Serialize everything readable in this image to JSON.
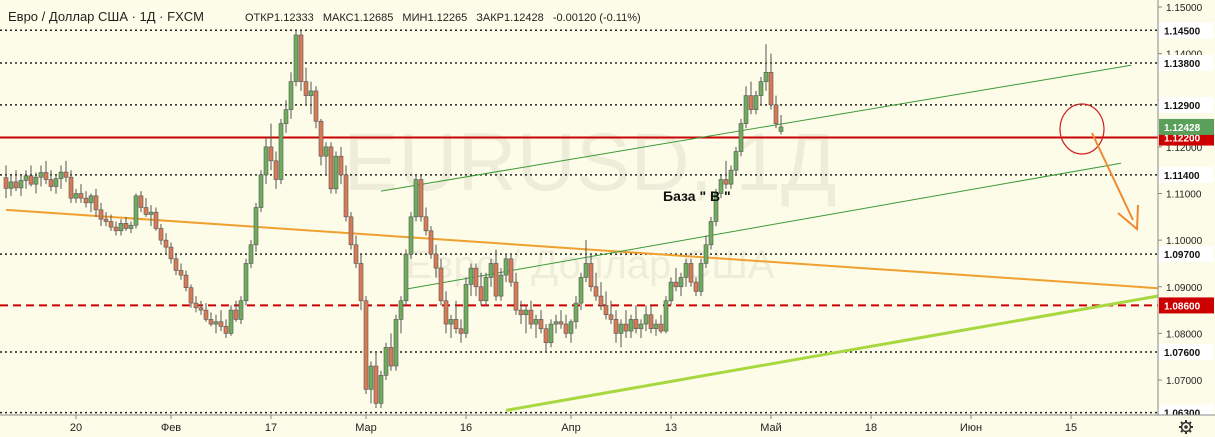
{
  "header": {
    "symbol": "Евро / Доллар США · 1Д · FXCM",
    "open_label": "ОТКР",
    "open": "1.12333",
    "high_label": "МАКС",
    "high": "1.12685",
    "low_label": "МИН",
    "low": "1.12265",
    "close_label": "ЗАКР",
    "close": "1.12428",
    "change": "-0.00120 (-0.11%)"
  },
  "watermark": {
    "ticker": "EURUSD, 1Д",
    "name": "Евро / Доллар США"
  },
  "annotation": {
    "text": "База \" В \""
  },
  "colors": {
    "background": "#fdfce8",
    "bull": "#6fad5e",
    "bear": "#d97a56",
    "red_level": "#cc0000",
    "orange_line": "#f0a030",
    "lime_line": "#a8d840",
    "channel": "#3a9a3a",
    "price_badge": "#5aa05a"
  },
  "chart_data": {
    "type": "candlestick",
    "title": "Евро / Доллар США · 1Д · FXCM",
    "ylim": [
      1.0625,
      1.1515
    ],
    "y_ticks": [
      1.15,
      1.14,
      1.13,
      1.12,
      1.11,
      1.1,
      1.09,
      1.08,
      1.07
    ],
    "y_tick_labels": [
      "1.15000",
      "1.14000",
      "1.13000",
      "1.12000",
      "1.11000",
      "1.10000",
      "1.09000",
      "1.08000",
      "1.07000"
    ],
    "x_tick_labels": [
      "20",
      "Фев",
      "17",
      "Мар",
      "16",
      "Апр",
      "13",
      "Май",
      "18",
      "Июн",
      "15"
    ],
    "x_tick_index": [
      14,
      33,
      53,
      72,
      92,
      113,
      133,
      153,
      173,
      193,
      213
    ],
    "levels": [
      {
        "value": 1.145,
        "label": "1.14500",
        "style": "dotted"
      },
      {
        "value": 1.138,
        "label": "1.13800",
        "style": "dotted"
      },
      {
        "value": 1.129,
        "label": "1.12900",
        "style": "dotted"
      },
      {
        "value": 1.122,
        "label": "1.12200",
        "style": "solid-red"
      },
      {
        "value": 1.114,
        "label": "1.11400",
        "style": "dotted"
      },
      {
        "value": 1.097,
        "label": "1.09700",
        "style": "dotted"
      },
      {
        "value": 1.086,
        "label": "1.08600",
        "style": "dashed-red"
      },
      {
        "value": 1.076,
        "label": "1.07600",
        "style": "dotted"
      },
      {
        "value": 1.063,
        "label": "1.06300",
        "style": "dotted"
      }
    ],
    "last_price": {
      "value": 1.12428,
      "label": "1.12428"
    },
    "trendlines": [
      {
        "name": "orange",
        "from": [
          0,
          1.1065
        ],
        "to": [
          233,
          1.0895
        ]
      },
      {
        "name": "lime",
        "from": [
          100,
          1.0635
        ],
        "to": [
          233,
          1.0885
        ]
      },
      {
        "name": "channel-upper",
        "from": [
          75,
          1.1105
        ],
        "to": [
          225,
          1.1375
        ]
      },
      {
        "name": "channel-lower",
        "from": [
          80,
          1.0895
        ],
        "to": [
          223,
          1.1165
        ]
      }
    ],
    "candles": [
      [
        1.1134,
        1.116,
        1.109,
        1.1111
      ],
      [
        1.1111,
        1.114,
        1.1095,
        1.1125
      ],
      [
        1.1125,
        1.115,
        1.1105,
        1.1112
      ],
      [
        1.1112,
        1.114,
        1.1095,
        1.1128
      ],
      [
        1.1128,
        1.115,
        1.111,
        1.1138
      ],
      [
        1.1138,
        1.116,
        1.1115,
        1.112
      ],
      [
        1.112,
        1.1145,
        1.11,
        1.1135
      ],
      [
        1.1135,
        1.116,
        1.1115,
        1.1145
      ],
      [
        1.1145,
        1.117,
        1.112,
        1.113
      ],
      [
        1.113,
        1.115,
        1.1105,
        1.1115
      ],
      [
        1.1115,
        1.114,
        1.11,
        1.1132
      ],
      [
        1.1132,
        1.116,
        1.111,
        1.1146
      ],
      [
        1.1146,
        1.117,
        1.1125,
        1.1135
      ],
      [
        1.1135,
        1.115,
        1.108,
        1.109
      ],
      [
        1.109,
        1.111,
        1.108,
        1.11
      ],
      [
        1.11,
        1.112,
        1.108,
        1.109
      ],
      [
        1.109,
        1.1105,
        1.107,
        1.108
      ],
      [
        1.108,
        1.11,
        1.106,
        1.1095
      ],
      [
        1.1095,
        1.111,
        1.105,
        1.1065
      ],
      [
        1.1065,
        1.108,
        1.103,
        1.1045
      ],
      [
        1.1045,
        1.106,
        1.103,
        1.104
      ],
      [
        1.104,
        1.1055,
        1.102,
        1.1028
      ],
      [
        1.1028,
        1.104,
        1.101,
        1.102
      ],
      [
        1.102,
        1.1045,
        1.101,
        1.1036
      ],
      [
        1.1036,
        1.105,
        1.102,
        1.1025
      ],
      [
        1.1025,
        1.104,
        1.1015,
        1.1032
      ],
      [
        1.1032,
        1.11,
        1.1025,
        1.1095
      ],
      [
        1.1095,
        1.1105,
        1.106,
        1.107
      ],
      [
        1.107,
        1.109,
        1.105,
        1.1055
      ],
      [
        1.1055,
        1.1075,
        1.103,
        1.106
      ],
      [
        1.106,
        1.107,
        1.102,
        1.1025
      ],
      [
        1.1025,
        1.1035,
        1.099,
        1.1
      ],
      [
        1.1,
        1.1015,
        1.097,
        1.0985
      ],
      [
        1.0985,
        1.0995,
        1.095,
        1.096
      ],
      [
        1.096,
        1.097,
        1.0925,
        1.0935
      ],
      [
        1.0935,
        1.095,
        1.0915,
        1.0925
      ],
      [
        1.0925,
        1.0935,
        1.089,
        1.0898
      ],
      [
        1.0898,
        1.0905,
        1.0855,
        1.0865
      ],
      [
        1.0865,
        1.088,
        1.0845,
        1.0855
      ],
      [
        1.0855,
        1.087,
        1.084,
        1.085
      ],
      [
        1.085,
        1.0865,
        1.0825,
        1.083
      ],
      [
        1.083,
        1.0845,
        1.0815,
        1.082
      ],
      [
        1.082,
        1.084,
        1.08,
        1.0825
      ],
      [
        1.0825,
        1.085,
        1.0805,
        1.0815
      ],
      [
        1.0815,
        1.083,
        1.079,
        1.08
      ],
      [
        1.08,
        1.086,
        1.0795,
        1.085
      ],
      [
        1.085,
        1.087,
        1.0825,
        1.083
      ],
      [
        1.083,
        1.088,
        1.082,
        1.087
      ],
      [
        1.087,
        1.096,
        1.086,
        1.095
      ],
      [
        1.095,
        1.1,
        1.094,
        1.099
      ],
      [
        1.099,
        1.108,
        1.0975,
        1.107
      ],
      [
        1.107,
        1.115,
        1.106,
        1.114
      ],
      [
        1.114,
        1.122,
        1.112,
        1.12
      ],
      [
        1.12,
        1.125,
        1.115,
        1.117
      ],
      [
        1.117,
        1.119,
        1.111,
        1.113
      ],
      [
        1.113,
        1.126,
        1.112,
        1.125
      ],
      [
        1.125,
        1.13,
        1.123,
        1.128
      ],
      [
        1.128,
        1.136,
        1.126,
        1.134
      ],
      [
        1.134,
        1.145,
        1.133,
        1.144
      ],
      [
        1.144,
        1.145,
        1.132,
        1.134
      ],
      [
        1.134,
        1.137,
        1.129,
        1.131
      ],
      [
        1.131,
        1.134,
        1.127,
        1.132
      ],
      [
        1.132,
        1.133,
        1.124,
        1.1255
      ],
      [
        1.1255,
        1.126,
        1.116,
        1.118
      ],
      [
        1.118,
        1.121,
        1.114,
        1.12
      ],
      [
        1.12,
        1.121,
        1.11,
        1.111
      ],
      [
        1.111,
        1.119,
        1.11,
        1.118
      ],
      [
        1.118,
        1.12,
        1.112,
        1.114
      ],
      [
        1.114,
        1.116,
        1.104,
        1.105
      ],
      [
        1.105,
        1.106,
        1.098,
        1.099
      ],
      [
        1.099,
        1.101,
        1.094,
        1.095
      ],
      [
        1.095,
        1.097,
        1.085,
        1.087
      ],
      [
        1.087,
        1.088,
        1.067,
        1.068
      ],
      [
        1.068,
        1.074,
        1.065,
        1.073
      ],
      [
        1.073,
        1.076,
        1.064,
        1.065
      ],
      [
        1.065,
        1.072,
        1.064,
        1.071
      ],
      [
        1.071,
        1.078,
        1.07,
        1.077
      ],
      [
        1.077,
        1.08,
        1.072,
        1.073
      ],
      [
        1.073,
        1.084,
        1.072,
        1.083
      ],
      [
        1.083,
        1.088,
        1.08,
        1.087
      ],
      [
        1.087,
        1.098,
        1.086,
        1.097
      ],
      [
        1.097,
        1.106,
        1.096,
        1.105
      ],
      [
        1.105,
        1.114,
        1.104,
        1.113
      ],
      [
        1.113,
        1.114,
        1.104,
        1.105
      ],
      [
        1.105,
        1.107,
        1.101,
        1.102
      ],
      [
        1.102,
        1.103,
        1.096,
        1.097
      ],
      [
        1.097,
        1.099,
        1.092,
        1.094
      ],
      [
        1.094,
        1.096,
        1.086,
        1.087
      ],
      [
        1.087,
        1.089,
        1.08,
        1.082
      ],
      [
        1.082,
        1.084,
        1.079,
        1.083
      ],
      [
        1.083,
        1.087,
        1.08,
        1.081
      ],
      [
        1.081,
        1.083,
        1.078,
        1.08
      ],
      [
        1.08,
        1.092,
        1.079,
        1.0905
      ],
      [
        1.0905,
        1.095,
        1.088,
        1.094
      ],
      [
        1.094,
        1.095,
        1.088,
        1.09
      ],
      [
        1.09,
        1.093,
        1.086,
        1.087
      ],
      [
        1.087,
        1.093,
        1.086,
        1.092
      ],
      [
        1.092,
        1.096,
        1.09,
        1.095
      ],
      [
        1.095,
        1.098,
        1.087,
        1.088
      ],
      [
        1.088,
        1.094,
        1.087,
        1.0925
      ],
      [
        1.0925,
        1.097,
        1.091,
        1.096
      ],
      [
        1.096,
        1.097,
        1.09,
        1.091
      ],
      [
        1.091,
        1.093,
        1.084,
        1.085
      ],
      [
        1.085,
        1.087,
        1.082,
        1.084
      ],
      [
        1.084,
        1.086,
        1.08,
        1.085
      ],
      [
        1.085,
        1.087,
        1.081,
        1.082
      ],
      [
        1.082,
        1.084,
        1.079,
        1.083
      ],
      [
        1.083,
        1.085,
        1.08,
        1.081
      ],
      [
        1.081,
        1.082,
        1.076,
        1.078
      ],
      [
        1.078,
        1.083,
        1.077,
        1.082
      ],
      [
        1.082,
        1.084,
        1.08,
        1.0825
      ],
      [
        1.0825,
        1.085,
        1.081,
        1.082
      ],
      [
        1.082,
        1.084,
        1.079,
        1.08
      ],
      [
        1.08,
        1.083,
        1.078,
        1.0825
      ],
      [
        1.0825,
        1.088,
        1.081,
        1.0865
      ],
      [
        1.0865,
        1.093,
        1.085,
        1.092
      ],
      [
        1.092,
        1.1,
        1.091,
        1.095
      ],
      [
        1.095,
        1.097,
        1.089,
        1.09
      ],
      [
        1.09,
        1.093,
        1.087,
        1.088
      ],
      [
        1.088,
        1.091,
        1.085,
        1.086
      ],
      [
        1.086,
        1.089,
        1.083,
        1.084
      ],
      [
        1.084,
        1.087,
        1.082,
        1.083
      ],
      [
        1.083,
        1.085,
        1.078,
        1.08
      ],
      [
        1.08,
        1.083,
        1.077,
        1.082
      ],
      [
        1.082,
        1.085,
        1.079,
        1.0805
      ],
      [
        1.0805,
        1.084,
        1.079,
        1.083
      ],
      [
        1.083,
        1.086,
        1.08,
        1.081
      ],
      [
        1.081,
        1.083,
        1.079,
        1.082
      ],
      [
        1.082,
        1.086,
        1.0805,
        1.084
      ],
      [
        1.084,
        1.086,
        1.08,
        1.081
      ],
      [
        1.081,
        1.083,
        1.0795,
        1.082
      ],
      [
        1.082,
        1.084,
        1.08,
        1.0805
      ],
      [
        1.0805,
        1.088,
        1.08,
        1.087
      ],
      [
        1.087,
        1.092,
        1.086,
        1.091
      ],
      [
        1.091,
        1.094,
        1.089,
        1.09
      ],
      [
        1.09,
        1.093,
        1.088,
        1.092
      ],
      [
        1.092,
        1.096,
        1.09,
        1.095
      ],
      [
        1.095,
        1.096,
        1.09,
        1.091
      ],
      [
        1.091,
        1.092,
        1.088,
        1.089
      ],
      [
        1.089,
        1.096,
        1.088,
        1.095
      ],
      [
        1.095,
        1.101,
        1.094,
        1.099
      ],
      [
        1.099,
        1.105,
        1.098,
        1.104
      ],
      [
        1.104,
        1.111,
        1.103,
        1.11
      ],
      [
        1.11,
        1.114,
        1.109,
        1.113
      ],
      [
        1.113,
        1.117,
        1.111,
        1.112
      ],
      [
        1.112,
        1.116,
        1.111,
        1.115
      ],
      [
        1.115,
        1.12,
        1.114,
        1.119
      ],
      [
        1.119,
        1.126,
        1.118,
        1.125
      ],
      [
        1.125,
        1.133,
        1.124,
        1.131
      ],
      [
        1.131,
        1.134,
        1.127,
        1.128
      ],
      [
        1.128,
        1.132,
        1.127,
        1.131
      ],
      [
        1.131,
        1.135,
        1.129,
        1.134
      ],
      [
        1.134,
        1.142,
        1.132,
        1.136
      ],
      [
        1.136,
        1.14,
        1.128,
        1.129
      ],
      [
        1.129,
        1.131,
        1.124,
        1.125
      ],
      [
        1.12333,
        1.12685,
        1.12265,
        1.12428
      ]
    ]
  }
}
